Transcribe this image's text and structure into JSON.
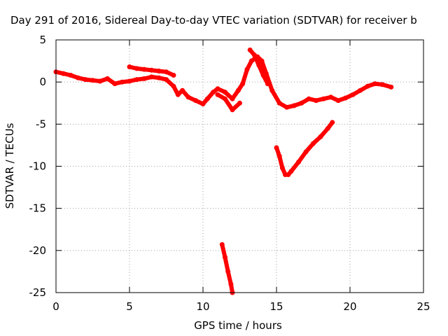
{
  "chart_data": {
    "type": "scatter",
    "title": "Day 291 of 2016, Sidereal Day-to-day VTEC variation (SDTVAR) for receiver b",
    "xlabel": "GPS time / hours",
    "ylabel": "SDTVAR / TECUs",
    "xlim": [
      0,
      25
    ],
    "ylim": [
      -25,
      5
    ],
    "xticks": [
      0,
      5,
      10,
      15,
      20,
      25
    ],
    "yticks": [
      5,
      0,
      -5,
      -10,
      -15,
      -20,
      -25
    ],
    "grid": true,
    "color": "#ff0000",
    "series": [
      {
        "points": [
          [
            0,
            1.2
          ],
          [
            0.5,
            1.0
          ],
          [
            1,
            0.8
          ],
          [
            1.5,
            0.5
          ],
          [
            2,
            0.3
          ],
          [
            2.5,
            0.2
          ],
          [
            3,
            0.1
          ],
          [
            3.5,
            0.4
          ],
          [
            4,
            -0.2
          ],
          [
            4.5,
            0.0
          ],
          [
            5,
            0.1
          ],
          [
            5.5,
            0.3
          ],
          [
            6,
            0.4
          ],
          [
            6.5,
            0.6
          ],
          [
            7,
            0.5
          ],
          [
            7.5,
            0.3
          ],
          [
            8,
            -0.5
          ],
          [
            8.3,
            -1.5
          ],
          [
            8.6,
            -1.0
          ],
          [
            9,
            -1.8
          ],
          [
            9.5,
            -2.2
          ],
          [
            10,
            -2.6
          ],
          [
            10.3,
            -2.0
          ],
          [
            10.7,
            -1.2
          ],
          [
            11,
            -0.8
          ],
          [
            11.5,
            -1.2
          ],
          [
            12,
            -2.0
          ],
          [
            12.4,
            -1.0
          ],
          [
            12.7,
            -0.2
          ],
          [
            13,
            1.5
          ],
          [
            13.3,
            2.5
          ],
          [
            13.7,
            3.0
          ],
          [
            14,
            2.5
          ],
          [
            14.3,
            1.0
          ],
          [
            14.7,
            -1.0
          ],
          [
            15.2,
            -2.5
          ],
          [
            15.7,
            -3.0
          ],
          [
            16.2,
            -2.8
          ],
          [
            16.7,
            -2.5
          ],
          [
            17.2,
            -2.0
          ],
          [
            17.7,
            -2.2
          ],
          [
            18.2,
            -2.0
          ],
          [
            18.7,
            -1.8
          ],
          [
            19.2,
            -2.2
          ],
          [
            19.7,
            -1.9
          ],
          [
            20.2,
            -1.5
          ],
          [
            20.7,
            -1.0
          ],
          [
            21.2,
            -0.5
          ],
          [
            21.7,
            -0.2
          ],
          [
            22.2,
            -0.3
          ],
          [
            22.8,
            -0.6
          ]
        ]
      },
      {
        "points": [
          [
            5,
            1.8
          ],
          [
            5.5,
            1.6
          ],
          [
            6,
            1.5
          ],
          [
            6.5,
            1.4
          ],
          [
            7,
            1.3
          ],
          [
            7.5,
            1.2
          ],
          [
            8,
            0.8
          ]
        ]
      },
      {
        "points": [
          [
            13.2,
            3.8
          ],
          [
            13.5,
            3.2
          ],
          [
            13.8,
            2.0
          ],
          [
            14.1,
            0.8
          ],
          [
            14.4,
            -0.2
          ]
        ]
      },
      {
        "points": [
          [
            11.0,
            -1.5
          ],
          [
            11.5,
            -2.0
          ],
          [
            12.0,
            -3.3
          ],
          [
            12.5,
            -2.5
          ]
        ]
      },
      {
        "points": [
          [
            15.0,
            -7.8
          ],
          [
            15.2,
            -8.8
          ],
          [
            15.4,
            -10.2
          ],
          [
            15.6,
            -11.0
          ],
          [
            15.8,
            -11.0
          ],
          [
            16.0,
            -10.6
          ],
          [
            16.5,
            -9.5
          ],
          [
            17.0,
            -8.3
          ],
          [
            17.5,
            -7.3
          ],
          [
            18.0,
            -6.5
          ],
          [
            18.5,
            -5.5
          ],
          [
            18.8,
            -4.8
          ]
        ]
      },
      {
        "points": [
          [
            11.3,
            -19.3
          ],
          [
            11.5,
            -20.8
          ],
          [
            11.7,
            -22.5
          ],
          [
            11.9,
            -24.0
          ],
          [
            12.0,
            -25.0
          ]
        ]
      }
    ]
  }
}
